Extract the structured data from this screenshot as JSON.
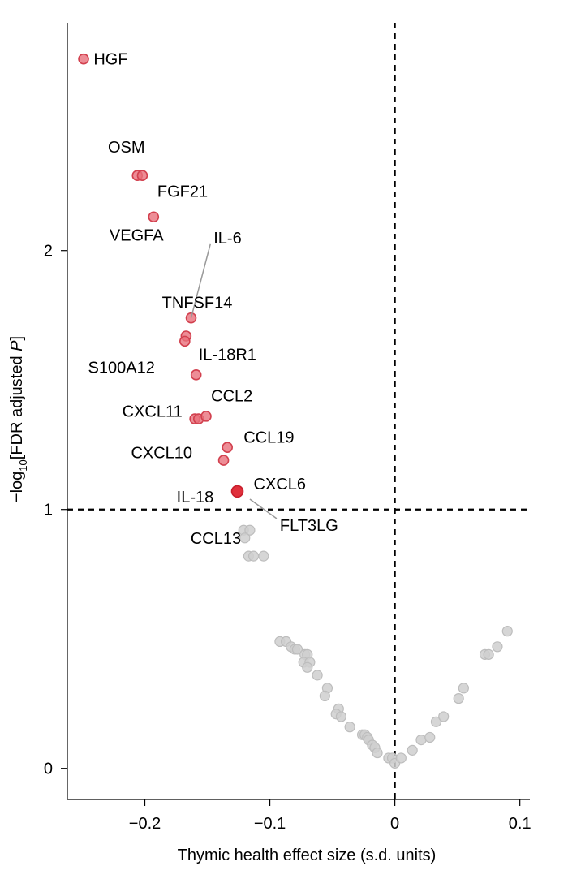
{
  "chart_data": {
    "type": "scatter",
    "title": "",
    "xlabel": "Thymic health effect size (s.d. units)",
    "ylabel_parts": [
      "−log",
      "10",
      "[FDR adjusted ",
      "P",
      "]"
    ],
    "xlim": [
      -0.262,
      0.108
    ],
    "ylim": [
      -0.12,
      2.88
    ],
    "x_ticks": [
      -0.2,
      -0.1,
      0,
      0.1
    ],
    "x_tick_labels": [
      "−0.2",
      "−0.1",
      "0",
      "0.1"
    ],
    "y_ticks": [
      0,
      1,
      2
    ],
    "y_tick_labels": [
      "0",
      "1",
      "2"
    ],
    "threshold_lines": {
      "x": 0,
      "y": 1
    },
    "colors": {
      "significant": "#e8707c",
      "highlight": "#e0303c",
      "nonsignificant": "#cfcfcf",
      "leader": "#999999"
    },
    "significant_points": [
      {
        "x": -0.249,
        "y": 2.74
      },
      {
        "x": -0.206,
        "y": 2.29
      },
      {
        "x": -0.202,
        "y": 2.29
      },
      {
        "x": -0.193,
        "y": 2.13
      },
      {
        "x": -0.163,
        "y": 1.74
      },
      {
        "x": -0.167,
        "y": 1.67
      },
      {
        "x": -0.168,
        "y": 1.65
      },
      {
        "x": -0.159,
        "y": 1.52
      },
      {
        "x": -0.16,
        "y": 1.35
      },
      {
        "x": -0.157,
        "y": 1.35
      },
      {
        "x": -0.151,
        "y": 1.36
      },
      {
        "x": -0.134,
        "y": 1.24
      },
      {
        "x": -0.137,
        "y": 1.19
      },
      {
        "x": -0.126,
        "y": 1.07,
        "highlight": true
      }
    ],
    "nonsignificant_points": [
      {
        "x": -0.121,
        "y": 0.92
      },
      {
        "x": -0.116,
        "y": 0.92
      },
      {
        "x": -0.12,
        "y": 0.89
      },
      {
        "x": -0.117,
        "y": 0.82
      },
      {
        "x": -0.113,
        "y": 0.82
      },
      {
        "x": -0.105,
        "y": 0.82
      },
      {
        "x": -0.092,
        "y": 0.49
      },
      {
        "x": -0.087,
        "y": 0.49
      },
      {
        "x": -0.083,
        "y": 0.47
      },
      {
        "x": -0.08,
        "y": 0.46
      },
      {
        "x": -0.078,
        "y": 0.46
      },
      {
        "x": -0.072,
        "y": 0.44
      },
      {
        "x": -0.07,
        "y": 0.44
      },
      {
        "x": -0.073,
        "y": 0.41
      },
      {
        "x": -0.068,
        "y": 0.41
      },
      {
        "x": -0.07,
        "y": 0.39
      },
      {
        "x": -0.062,
        "y": 0.36
      },
      {
        "x": -0.054,
        "y": 0.31
      },
      {
        "x": -0.056,
        "y": 0.28
      },
      {
        "x": -0.045,
        "y": 0.23
      },
      {
        "x": -0.047,
        "y": 0.21
      },
      {
        "x": -0.043,
        "y": 0.2
      },
      {
        "x": -0.036,
        "y": 0.16
      },
      {
        "x": -0.026,
        "y": 0.13
      },
      {
        "x": -0.024,
        "y": 0.13
      },
      {
        "x": -0.022,
        "y": 0.12
      },
      {
        "x": -0.021,
        "y": 0.11
      },
      {
        "x": -0.018,
        "y": 0.09
      },
      {
        "x": -0.016,
        "y": 0.08
      },
      {
        "x": -0.014,
        "y": 0.06
      },
      {
        "x": -0.005,
        "y": 0.04
      },
      {
        "x": -0.002,
        "y": 0.04
      },
      {
        "x": 0.0,
        "y": 0.02
      },
      {
        "x": 0.005,
        "y": 0.04
      },
      {
        "x": 0.014,
        "y": 0.07
      },
      {
        "x": 0.021,
        "y": 0.11
      },
      {
        "x": 0.028,
        "y": 0.12
      },
      {
        "x": 0.033,
        "y": 0.18
      },
      {
        "x": 0.039,
        "y": 0.2
      },
      {
        "x": 0.051,
        "y": 0.27
      },
      {
        "x": 0.055,
        "y": 0.31
      },
      {
        "x": 0.072,
        "y": 0.44
      },
      {
        "x": 0.075,
        "y": 0.44
      },
      {
        "x": 0.082,
        "y": 0.47
      },
      {
        "x": 0.09,
        "y": 0.53
      }
    ],
    "labels": [
      {
        "text": "HGF",
        "x": -0.241,
        "y": 2.74,
        "anchor": "start"
      },
      {
        "text": "OSM",
        "x": -0.2,
        "y": 2.4,
        "anchor": "end"
      },
      {
        "text": "FGF21",
        "x": -0.19,
        "y": 2.23,
        "anchor": "start"
      },
      {
        "text": "VEGFA",
        "x": -0.185,
        "y": 2.06,
        "anchor": "end"
      },
      {
        "text": "IL-6",
        "x": -0.145,
        "y": 2.05,
        "anchor": "start",
        "leader_to": {
          "x": -0.163,
          "y": 1.74
        }
      },
      {
        "text": "TNFSF14",
        "x": -0.13,
        "y": 1.8,
        "anchor": "end"
      },
      {
        "text": "S100A12",
        "x": -0.192,
        "y": 1.55,
        "anchor": "end"
      },
      {
        "text": "IL-18R1",
        "x": -0.157,
        "y": 1.6,
        "anchor": "start"
      },
      {
        "text": "CXCL11",
        "x": -0.17,
        "y": 1.38,
        "anchor": "end"
      },
      {
        "text": "CCL2",
        "x": -0.147,
        "y": 1.44,
        "anchor": "start"
      },
      {
        "text": "CXCL10",
        "x": -0.162,
        "y": 1.22,
        "anchor": "end"
      },
      {
        "text": "CCL19",
        "x": -0.121,
        "y": 1.28,
        "anchor": "start"
      },
      {
        "text": "CXCL6",
        "x": -0.113,
        "y": 1.1,
        "anchor": "start"
      },
      {
        "text": "IL-18",
        "x": -0.145,
        "y": 1.05,
        "anchor": "end"
      },
      {
        "text": "FLT3LG",
        "x": -0.092,
        "y": 0.94,
        "anchor": "start",
        "leader_to": {
          "x": -0.116,
          "y": 1.04
        }
      },
      {
        "text": "CCL13",
        "x": -0.123,
        "y": 0.89,
        "anchor": "end"
      }
    ]
  }
}
